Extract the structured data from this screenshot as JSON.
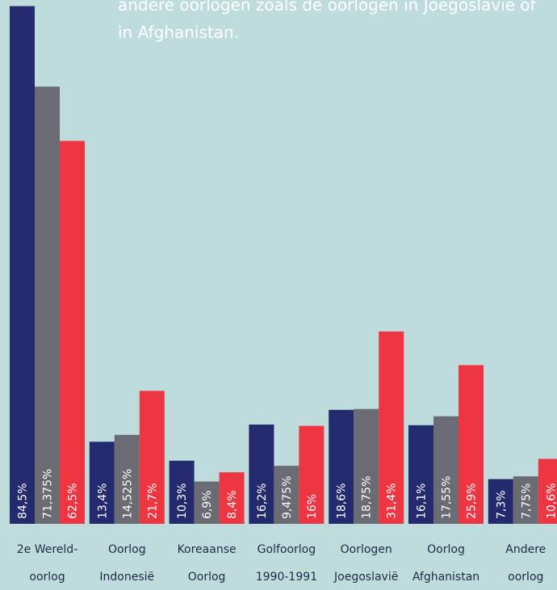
{
  "intro": {
    "line1": "andere oorlogen zoals de oorlogen in Joegoslavië of",
    "line2": "in Afghanistan."
  },
  "colors": {
    "background": "#bfdcdc",
    "series_a": "#242a6e",
    "series_b": "#6a6b73",
    "series_c": "#ee3542",
    "text": "#1f2a44"
  },
  "chart_data": {
    "type": "bar",
    "title": "",
    "xlabel": "",
    "ylabel": "",
    "ylim": [
      0,
      85
    ],
    "grid": false,
    "categories": [
      [
        "2e Wereld-",
        "oorlog"
      ],
      [
        "Oorlog",
        "Indonesië"
      ],
      [
        "Koreaanse",
        "Oorlog"
      ],
      [
        "Golfoorlog",
        "1990-1991"
      ],
      [
        "Oorlogen",
        "Joegoslavië"
      ],
      [
        "Oorlog",
        "Afghanistan"
      ],
      [
        "Andere",
        "oorlog"
      ]
    ],
    "series": [
      {
        "values": [
          84.5,
          13.4,
          10.3,
          16.2,
          18.6,
          16.1,
          7.3
        ],
        "labels": [
          "84,5%",
          "13,4%",
          "10,3%",
          "16,2%",
          "18,6%",
          "16,1%",
          "7,3%"
        ]
      },
      {
        "values": [
          71.375,
          14.525,
          6.9,
          9.475,
          18.75,
          17.55,
          7.75
        ],
        "labels": [
          "71,375%",
          "14,525%",
          "6,9%",
          "9,475%",
          "18,75%",
          "17,55%",
          "7,75%"
        ]
      },
      {
        "values": [
          62.5,
          21.7,
          8.4,
          16,
          31.4,
          25.9,
          10.6
        ],
        "labels": [
          "62,5%",
          "21,7%",
          "8,4%",
          "16%",
          "31,4%",
          "25,9%",
          "10,6%"
        ]
      }
    ]
  }
}
